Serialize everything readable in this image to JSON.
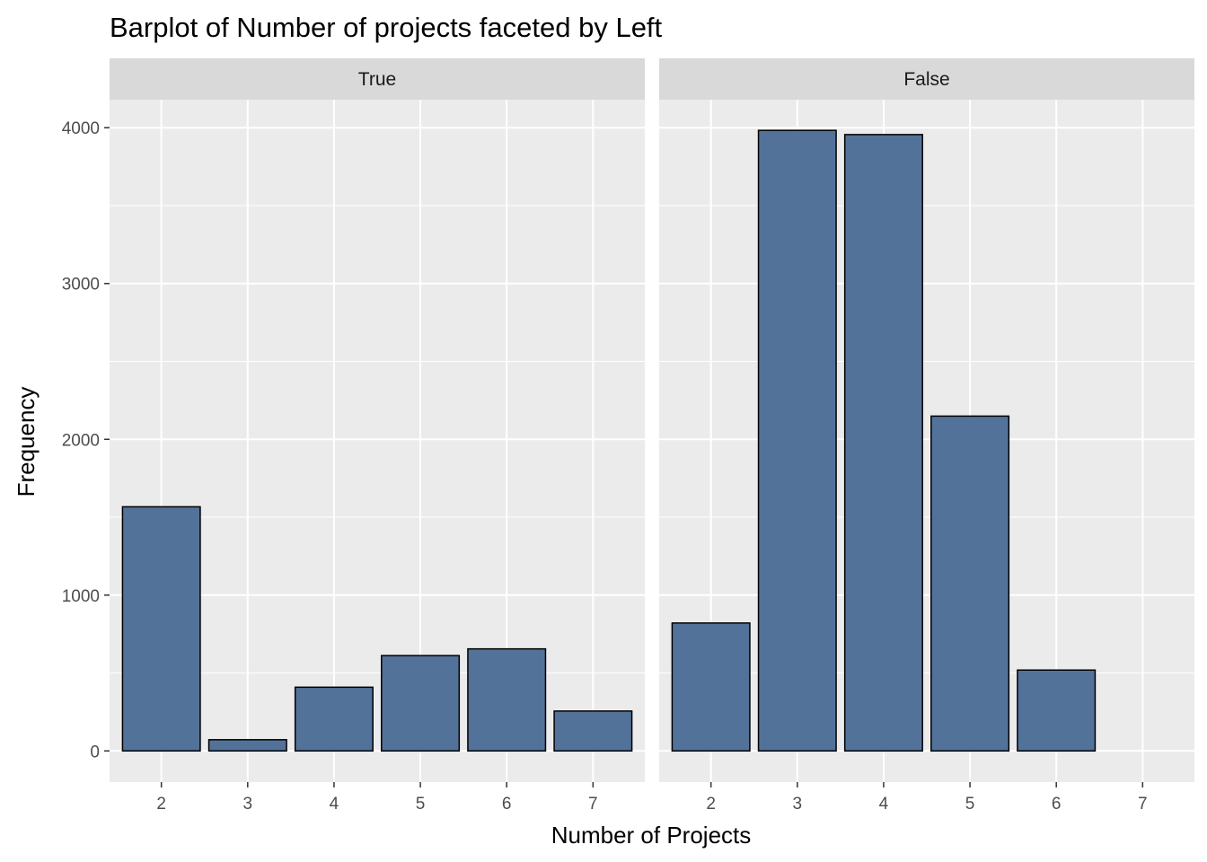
{
  "chart_data": {
    "type": "bar",
    "title": "Barplot of Number of projects faceted by Left",
    "xlabel": "Number of Projects",
    "ylabel": "Frequency",
    "categories": [
      "2",
      "3",
      "4",
      "5",
      "6",
      "7"
    ],
    "ylim": [
      -200,
      4180
    ],
    "yticks": [
      0,
      1000,
      2000,
      3000,
      4000
    ],
    "grid": true,
    "bar_color": "#52729a",
    "bar_outline": "#000000",
    "panel_background": "#ebebeb",
    "strip_background": "#d9d9d9",
    "facets": [
      {
        "label": "True",
        "values": [
          1567,
          72,
          409,
          612,
          655,
          256
        ]
      },
      {
        "label": "False",
        "values": [
          821,
          3983,
          3956,
          2149,
          519,
          0
        ]
      }
    ]
  }
}
